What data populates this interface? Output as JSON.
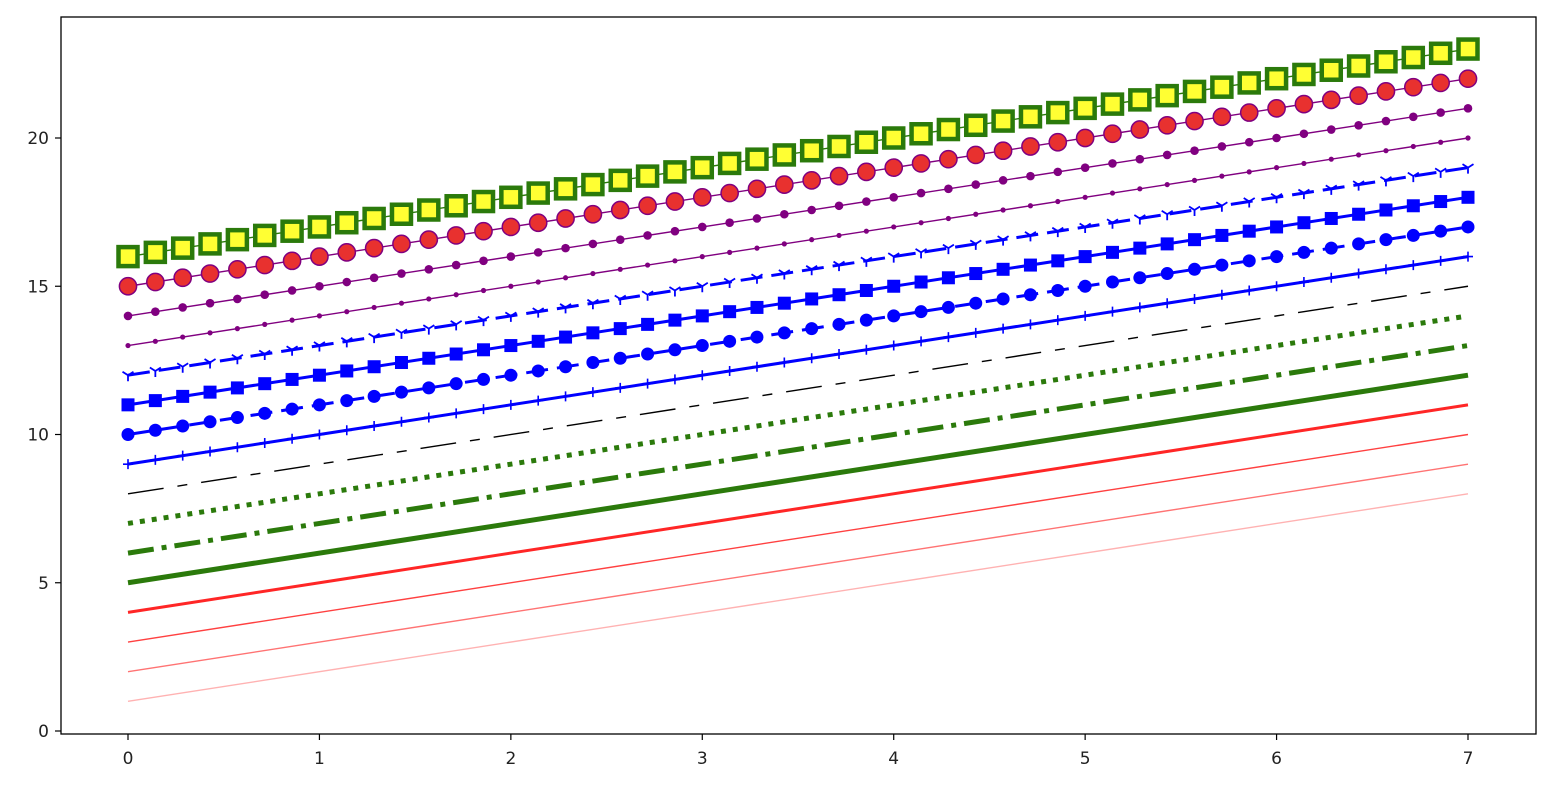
{
  "chart_data": {
    "type": "line",
    "title": "",
    "xlabel": "",
    "ylabel": "",
    "xlim": [
      -0.35,
      7.35
    ],
    "ylim": [
      -0.1,
      24.1
    ],
    "grid": false,
    "legend": false,
    "xticks": [
      0,
      1,
      2,
      3,
      4,
      5,
      6,
      7
    ],
    "xtick_labels": [
      "0",
      "1",
      "2",
      "3",
      "4",
      "5",
      "6",
      "7"
    ],
    "yticks": [
      0,
      5,
      10,
      15,
      20
    ],
    "ytick_labels": [
      "0",
      "5",
      "10",
      "15",
      "20"
    ],
    "x_range": [
      0,
      7
    ],
    "series": [
      {
        "start": 1,
        "end": 8,
        "color": "#ff0000",
        "alpha": 0.3,
        "style": "solid",
        "width": "thin",
        "marker": "none"
      },
      {
        "start": 2,
        "end": 9,
        "color": "#ff0000",
        "alpha": 0.55,
        "style": "solid",
        "width": "thin",
        "marker": "none"
      },
      {
        "start": 3,
        "end": 10,
        "color": "#ff0000",
        "alpha": 0.75,
        "style": "solid",
        "width": "thin",
        "marker": "none"
      },
      {
        "start": 4,
        "end": 11,
        "color": "#ff0000",
        "alpha": 0.85,
        "style": "solid",
        "width": "medium",
        "marker": "none"
      },
      {
        "start": 5,
        "end": 12,
        "color": "#2b7a0b",
        "alpha": 1,
        "style": "solid",
        "width": "thick",
        "marker": "none"
      },
      {
        "start": 6,
        "end": 13,
        "color": "#2b7a0b",
        "alpha": 1,
        "style": "dashdot",
        "width": "thick",
        "marker": "none"
      },
      {
        "start": 7,
        "end": 14,
        "color": "#2b7a0b",
        "alpha": 1,
        "style": "dotted",
        "width": "thick",
        "marker": "none"
      },
      {
        "start": 8,
        "end": 15,
        "color": "#000000",
        "alpha": 1,
        "style": "custom-dash",
        "width": "thin",
        "marker": "none"
      },
      {
        "start": 9,
        "end": 16,
        "color": "#0000ff",
        "alpha": 1,
        "style": "solid",
        "width": "medium",
        "marker": "plus"
      },
      {
        "start": 10,
        "end": 17,
        "color": "#0000ff",
        "alpha": 1,
        "style": "dashed",
        "width": "medium",
        "marker": "circle"
      },
      {
        "start": 11,
        "end": 18,
        "color": "#0000ff",
        "alpha": 1,
        "style": "solid",
        "width": "medium",
        "marker": "square"
      },
      {
        "start": 12,
        "end": 19,
        "color": "#0000ff",
        "alpha": 1,
        "style": "dashed",
        "width": "medium",
        "marker": "tri-down"
      },
      {
        "start": 13,
        "end": 20,
        "color": "#800080",
        "alpha": 1,
        "style": "solid",
        "width": "thin",
        "marker": "point"
      },
      {
        "start": 14,
        "end": 21,
        "color": "#800080",
        "alpha": 1,
        "style": "solid",
        "width": "thin",
        "marker": "circle-small"
      },
      {
        "start": 15,
        "end": 22,
        "color": "#800080",
        "alpha": 1,
        "style": "solid",
        "width": "thin",
        "marker": "circle-large",
        "marker_face": "#e8312f"
      },
      {
        "start": 16,
        "end": 23,
        "color": "#2b7a0b",
        "alpha": 1,
        "style": "solid",
        "width": "thin",
        "marker": "square-large",
        "marker_face": "#ffff33"
      }
    ]
  }
}
